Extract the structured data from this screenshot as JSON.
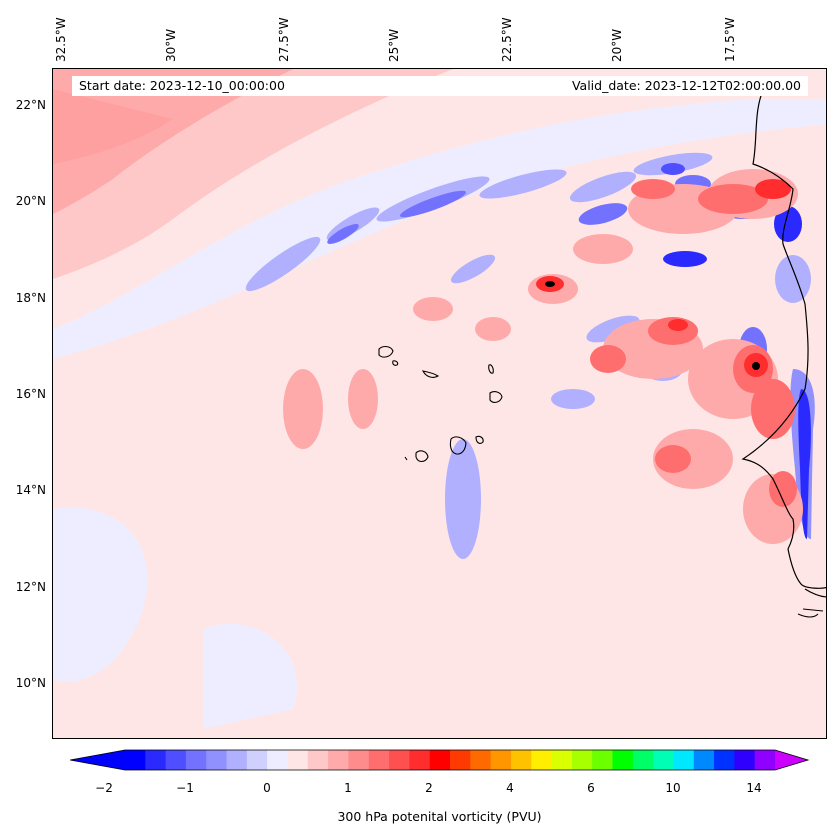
{
  "header": {
    "start_date": "Start date: 2023-12-10_00:00:00",
    "valid_date": "Valid_date: 2023-12-12T02:00:00.00"
  },
  "longitude_labels": [
    "32.5°W",
    "30°W",
    "27.5°W",
    "25°W",
    "22.5°W",
    "20°W",
    "17.5°W"
  ],
  "latitude_labels": [
    "22°N",
    "20°N",
    "18°N",
    "16°N",
    "14°N",
    "12°N",
    "10°N"
  ],
  "colorbar": {
    "label": "300 hPa potenital vorticity (PVU)",
    "tick_labels": [
      "−2",
      "−1",
      "0",
      "1",
      "2",
      "4",
      "6",
      "10",
      "14"
    ],
    "colors": [
      "#0000ff",
      "#2a2aff",
      "#4f4fff",
      "#7272ff",
      "#9090ff",
      "#b0b0ff",
      "#d0d0ff",
      "#ededff",
      "#ffe6e6",
      "#ffc8c8",
      "#ffaaaa",
      "#ff8c8c",
      "#ff6e6e",
      "#ff5050",
      "#ff2d2d",
      "#ff0000",
      "#ff3a00",
      "#ff6a00",
      "#ff9600",
      "#ffc200",
      "#ffee00",
      "#d9ff00",
      "#a8ff00",
      "#6bff00",
      "#00ff00",
      "#00ff66",
      "#00ffb4",
      "#00e8ff",
      "#0088ff",
      "#0032ff",
      "#3000ff",
      "#9000ff"
    ],
    "extend_left": "#0000ff",
    "extend_right": "#cc00ff"
  }
}
